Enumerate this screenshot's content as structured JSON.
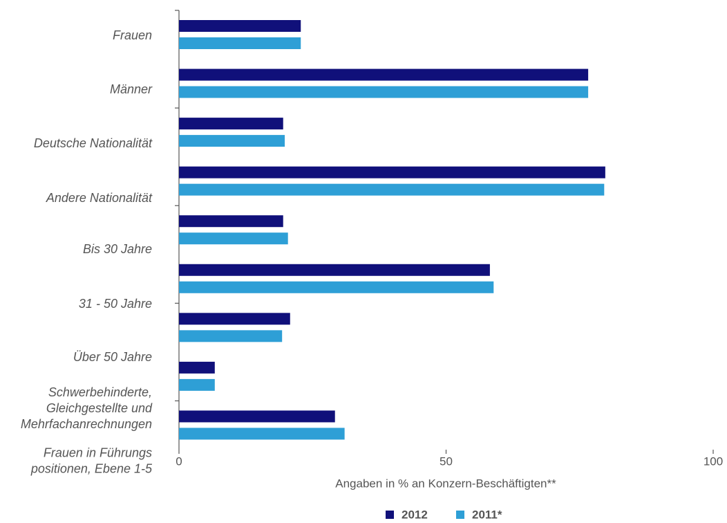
{
  "chart_data": {
    "type": "hbar",
    "categories": [
      "Frauen",
      "Männer",
      "Deutsche Nationalität",
      "Andere Nationalität",
      "Bis 30 Jahre",
      "31 - 50 Jahre",
      "Über 50 Jahre",
      "Schwerbehinderte,\nGleichgestellte und\nMehrfachanrechnungen",
      "Frauen in Führungs\npositionen, Ebene 1-5"
    ],
    "series": [
      {
        "name": "2012",
        "color": "#10107a",
        "values": [
          22.8,
          76.6,
          19.5,
          79.8,
          19.5,
          58.2,
          20.8,
          6.7,
          29.2
        ]
      },
      {
        "name": "2011*",
        "color": "#2e9fd6",
        "values": [
          22.8,
          76.6,
          19.8,
          79.6,
          20.4,
          58.9,
          19.3,
          6.7,
          31.0
        ]
      }
    ],
    "xlabel": "Angaben in % an Konzern-Beschäftigten**",
    "xlim": [
      0,
      100
    ],
    "xticks": [
      0,
      50,
      100
    ],
    "legend": "bottom"
  }
}
